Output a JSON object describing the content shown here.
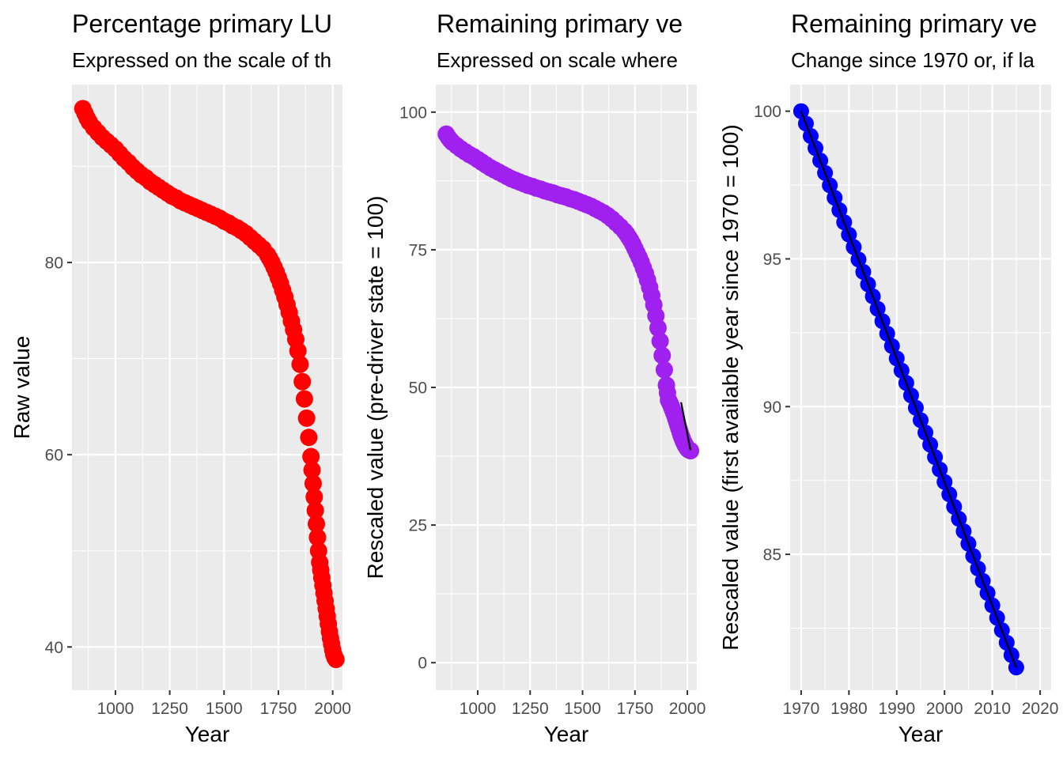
{
  "chart_data": [
    {
      "type": "scatter",
      "title": "Percentage primary LU",
      "subtitle": "Expressed on the scale of th",
      "xlabel": "Year",
      "ylabel": "Raw value",
      "xlim": [
        800,
        2045
      ],
      "ylim": [
        35.5,
        98.5
      ],
      "xticks": [
        1000,
        1250,
        1500,
        1750,
        2000
      ],
      "xtick_labels": [
        "1000",
        "1250",
        "1500",
        "1750",
        "2000"
      ],
      "yticks": [
        40,
        60,
        80
      ],
      "ytick_labels": [
        "40",
        "60",
        "80"
      ],
      "grid": true,
      "series": [
        {
          "color": "#ff0000",
          "marker": "circle",
          "x": [
            850,
            860,
            870,
            880,
            900,
            920,
            940,
            960,
            980,
            1000,
            1020,
            1040,
            1060,
            1080,
            1100,
            1120,
            1140,
            1160,
            1180,
            1200,
            1220,
            1240,
            1260,
            1280,
            1300,
            1320,
            1340,
            1360,
            1380,
            1400,
            1420,
            1440,
            1460,
            1480,
            1500,
            1520,
            1540,
            1560,
            1580,
            1600,
            1620,
            1640,
            1660,
            1680,
            1700,
            1710,
            1720,
            1730,
            1740,
            1750,
            1760,
            1770,
            1780,
            1790,
            1800,
            1810,
            1820,
            1830,
            1840,
            1850,
            1860,
            1870,
            1880,
            1890,
            1900,
            1905,
            1910,
            1915,
            1920,
            1925,
            1930,
            1935,
            1940,
            1945,
            1950,
            1955,
            1960,
            1965,
            1970,
            1975,
            1980,
            1985,
            1990,
            1995,
            2000,
            2005,
            2010,
            2015
          ],
          "y": [
            96.0,
            95.5,
            95.0,
            94.6,
            94.0,
            93.5,
            93.0,
            92.6,
            92.2,
            91.8,
            91.3,
            90.8,
            90.4,
            89.9,
            89.5,
            89.1,
            88.8,
            88.4,
            88.1,
            87.8,
            87.5,
            87.2,
            86.9,
            86.7,
            86.4,
            86.2,
            86.0,
            85.8,
            85.6,
            85.4,
            85.2,
            85.0,
            84.8,
            84.6,
            84.3,
            84.1,
            83.8,
            83.6,
            83.3,
            83.0,
            82.6,
            82.2,
            81.8,
            81.4,
            80.8,
            80.4,
            80.0,
            79.5,
            79.0,
            78.4,
            77.8,
            77.1,
            76.4,
            75.6,
            74.8,
            73.9,
            73.0,
            72.0,
            70.8,
            69.4,
            67.6,
            65.8,
            63.8,
            61.8,
            59.8,
            58.4,
            57.0,
            55.6,
            54.2,
            52.8,
            51.4,
            50.0,
            48.8,
            48.0,
            47.2,
            46.4,
            45.6,
            44.8,
            44.0,
            43.2,
            42.4,
            41.6,
            40.9,
            40.3,
            39.7,
            39.2,
            38.9,
            38.7
          ]
        }
      ]
    },
    {
      "type": "scatter",
      "title": "Remaining primary ve",
      "subtitle": "Expressed on scale where",
      "xlabel": "Year",
      "ylabel": "Rescaled value (pre-driver state = 100)",
      "xlim": [
        800,
        2045
      ],
      "ylim": [
        -5,
        105
      ],
      "xticks": [
        1000,
        1250,
        1500,
        1750,
        2000
      ],
      "xtick_labels": [
        "1000",
        "1250",
        "1500",
        "1750",
        "2000"
      ],
      "yticks": [
        0,
        25,
        50,
        75,
        100
      ],
      "ytick_labels": [
        "0",
        "25",
        "50",
        "75",
        "100"
      ],
      "grid": true,
      "series": [
        {
          "color": "#a020f0",
          "marker": "circle",
          "x": [
            850,
            860,
            870,
            880,
            900,
            920,
            940,
            960,
            980,
            1000,
            1020,
            1040,
            1060,
            1080,
            1100,
            1120,
            1140,
            1160,
            1180,
            1200,
            1220,
            1240,
            1260,
            1280,
            1300,
            1320,
            1340,
            1360,
            1380,
            1400,
            1420,
            1440,
            1460,
            1480,
            1500,
            1520,
            1540,
            1560,
            1580,
            1600,
            1620,
            1640,
            1660,
            1680,
            1700,
            1710,
            1720,
            1730,
            1740,
            1750,
            1760,
            1770,
            1780,
            1790,
            1800,
            1810,
            1820,
            1830,
            1840,
            1850,
            1860,
            1870,
            1880,
            1890,
            1900,
            1905,
            1910,
            1915,
            1920,
            1925,
            1930,
            1935,
            1940,
            1945,
            1950,
            1955,
            1960,
            1965,
            1970,
            1975,
            1980,
            1985,
            1990,
            1995,
            2000,
            2005,
            2010,
            2015
          ],
          "y": [
            96.0,
            95.4,
            94.9,
            94.5,
            93.9,
            93.3,
            92.8,
            92.3,
            91.9,
            91.4,
            90.9,
            90.4,
            89.9,
            89.5,
            89.1,
            88.7,
            88.3,
            87.9,
            87.6,
            87.3,
            87.0,
            86.7,
            86.5,
            86.2,
            86.0,
            85.7,
            85.5,
            85.3,
            85.0,
            84.8,
            84.6,
            84.3,
            84.1,
            83.8,
            83.5,
            83.2,
            82.9,
            82.5,
            82.1,
            81.7,
            81.2,
            80.6,
            79.9,
            79.2,
            78.4,
            77.9,
            77.3,
            76.7,
            76.0,
            75.2,
            74.4,
            73.6,
            72.7,
            71.7,
            70.7,
            69.5,
            68.2,
            66.7,
            65.0,
            63.0,
            60.8,
            58.4,
            55.8,
            53.2,
            50.4,
            49.0,
            47.7,
            47.3,
            46.9,
            46.4,
            45.9,
            45.4,
            44.9,
            44.3,
            43.7,
            43.1,
            42.5,
            41.9,
            41.3,
            40.8,
            40.3,
            39.9,
            39.5,
            39.2,
            38.9,
            38.7,
            38.6,
            38.5
          ]
        }
      ],
      "trend_line": {
        "color": "#000000",
        "x": [
          1970,
          2015
        ],
        "y": [
          47.3,
          38.6
        ]
      }
    },
    {
      "type": "scatter",
      "title": "Remaining primary ve",
      "subtitle": "Change since 1970 or, if la",
      "xlabel": "Year",
      "ylabel": "Rescaled value (first available year since 1970 = 100)",
      "xlim": [
        1967.7,
        2022.3
      ],
      "ylim": [
        80.4,
        100.9
      ],
      "xticks": [
        1970,
        1980,
        1990,
        2000,
        2010,
        2020
      ],
      "xtick_labels": [
        "1970",
        "1980",
        "1990",
        "2000",
        "2010",
        "2020"
      ],
      "yticks": [
        85,
        90,
        95,
        100
      ],
      "ytick_labels": [
        "85",
        "90",
        "95",
        "100"
      ],
      "grid": true,
      "series": [
        {
          "color": "#0000ff",
          "marker": "circle",
          "x": [
            1970,
            1971,
            1972,
            1973,
            1974,
            1975,
            1976,
            1977,
            1978,
            1979,
            1980,
            1981,
            1982,
            1983,
            1984,
            1985,
            1986,
            1987,
            1988,
            1989,
            1990,
            1991,
            1992,
            1993,
            1994,
            1995,
            1996,
            1997,
            1998,
            1999,
            2000,
            2001,
            2002,
            2003,
            2004,
            2005,
            2006,
            2007,
            2008,
            2009,
            2010,
            2011,
            2012,
            2013,
            2014,
            2015
          ],
          "y": [
            100.0,
            99.58,
            99.16,
            98.75,
            98.33,
            97.91,
            97.49,
            97.07,
            96.65,
            96.24,
            95.82,
            95.4,
            94.98,
            94.56,
            94.14,
            93.73,
            93.31,
            92.89,
            92.47,
            92.05,
            91.63,
            91.22,
            90.8,
            90.38,
            89.96,
            89.54,
            89.12,
            88.71,
            88.29,
            87.87,
            87.45,
            87.03,
            86.61,
            86.2,
            85.78,
            85.36,
            84.94,
            84.52,
            84.1,
            83.69,
            83.27,
            82.85,
            82.43,
            82.01,
            81.59,
            81.17
          ]
        }
      ],
      "trend_line": {
        "color": "#000000",
        "x": [
          1970,
          2015
        ],
        "y": [
          100.0,
          81.17
        ]
      }
    }
  ]
}
